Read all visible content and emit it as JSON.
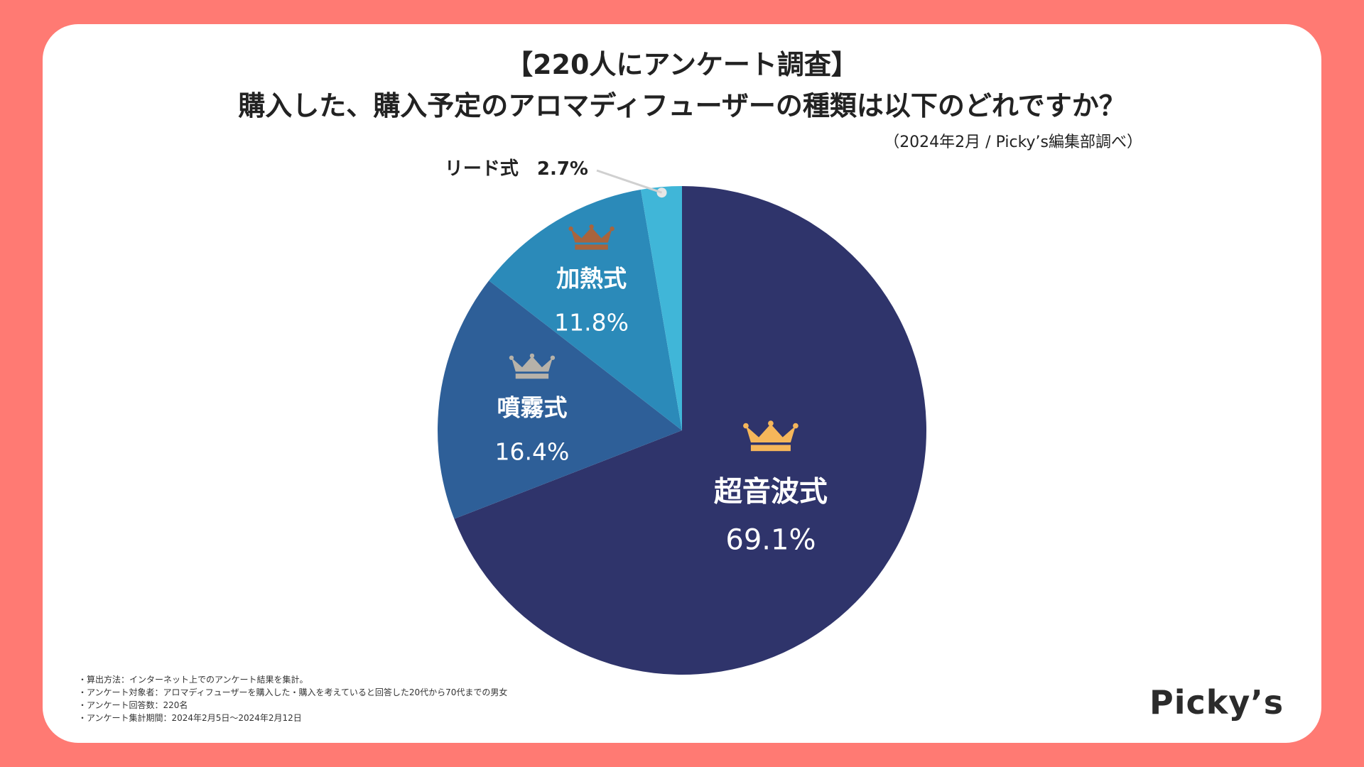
{
  "title_line1": "【220人にアンケート調査】",
  "title_line2": "購入した、購入予定のアロマディフューザーの種類は以下のどれですか？",
  "source": "（2024年2月 / Picky’s編集部調べ）",
  "chart_data": {
    "type": "pie",
    "unit": "%",
    "start_angle_deg": 0,
    "direction": "clockwise",
    "slices": [
      {
        "label": "超音波式",
        "value": 69.1,
        "value_label": "69.1%",
        "color": "#2f346b",
        "text_color": "#ffffff",
        "rank_icon": "crown-icon",
        "icon_color": "#f5b65a"
      },
      {
        "label": "噴霧式",
        "value": 16.4,
        "value_label": "16.4%",
        "color": "#2e5f98",
        "text_color": "#ffffff",
        "rank_icon": "crown-icon",
        "icon_color": "#b7b2a9"
      },
      {
        "label": "加熱式",
        "value": 11.8,
        "value_label": "11.8%",
        "color": "#2b8ab9",
        "text_color": "#ffffff",
        "rank_icon": "crown-icon",
        "icon_color": "#a8643d"
      },
      {
        "label": "リード式",
        "value": 2.7,
        "value_label": "2.7%",
        "color": "#40b6d8",
        "text_color": "#222222",
        "callout": true
      }
    ]
  },
  "notes": [
    "・算出方法：インターネット上でのアンケート結果を集計。",
    "・アンケート対象者：アロマディフューザーを購入した・購入を考えていると回答した20代から70代までの男女",
    "・アンケート回答数：220名",
    "・アンケート集計期間：2024年2月5日〜2024年2月12日"
  ],
  "logo": "Picky’s",
  "colors": {
    "background": "#ff7a73",
    "card": "#ffffff"
  }
}
